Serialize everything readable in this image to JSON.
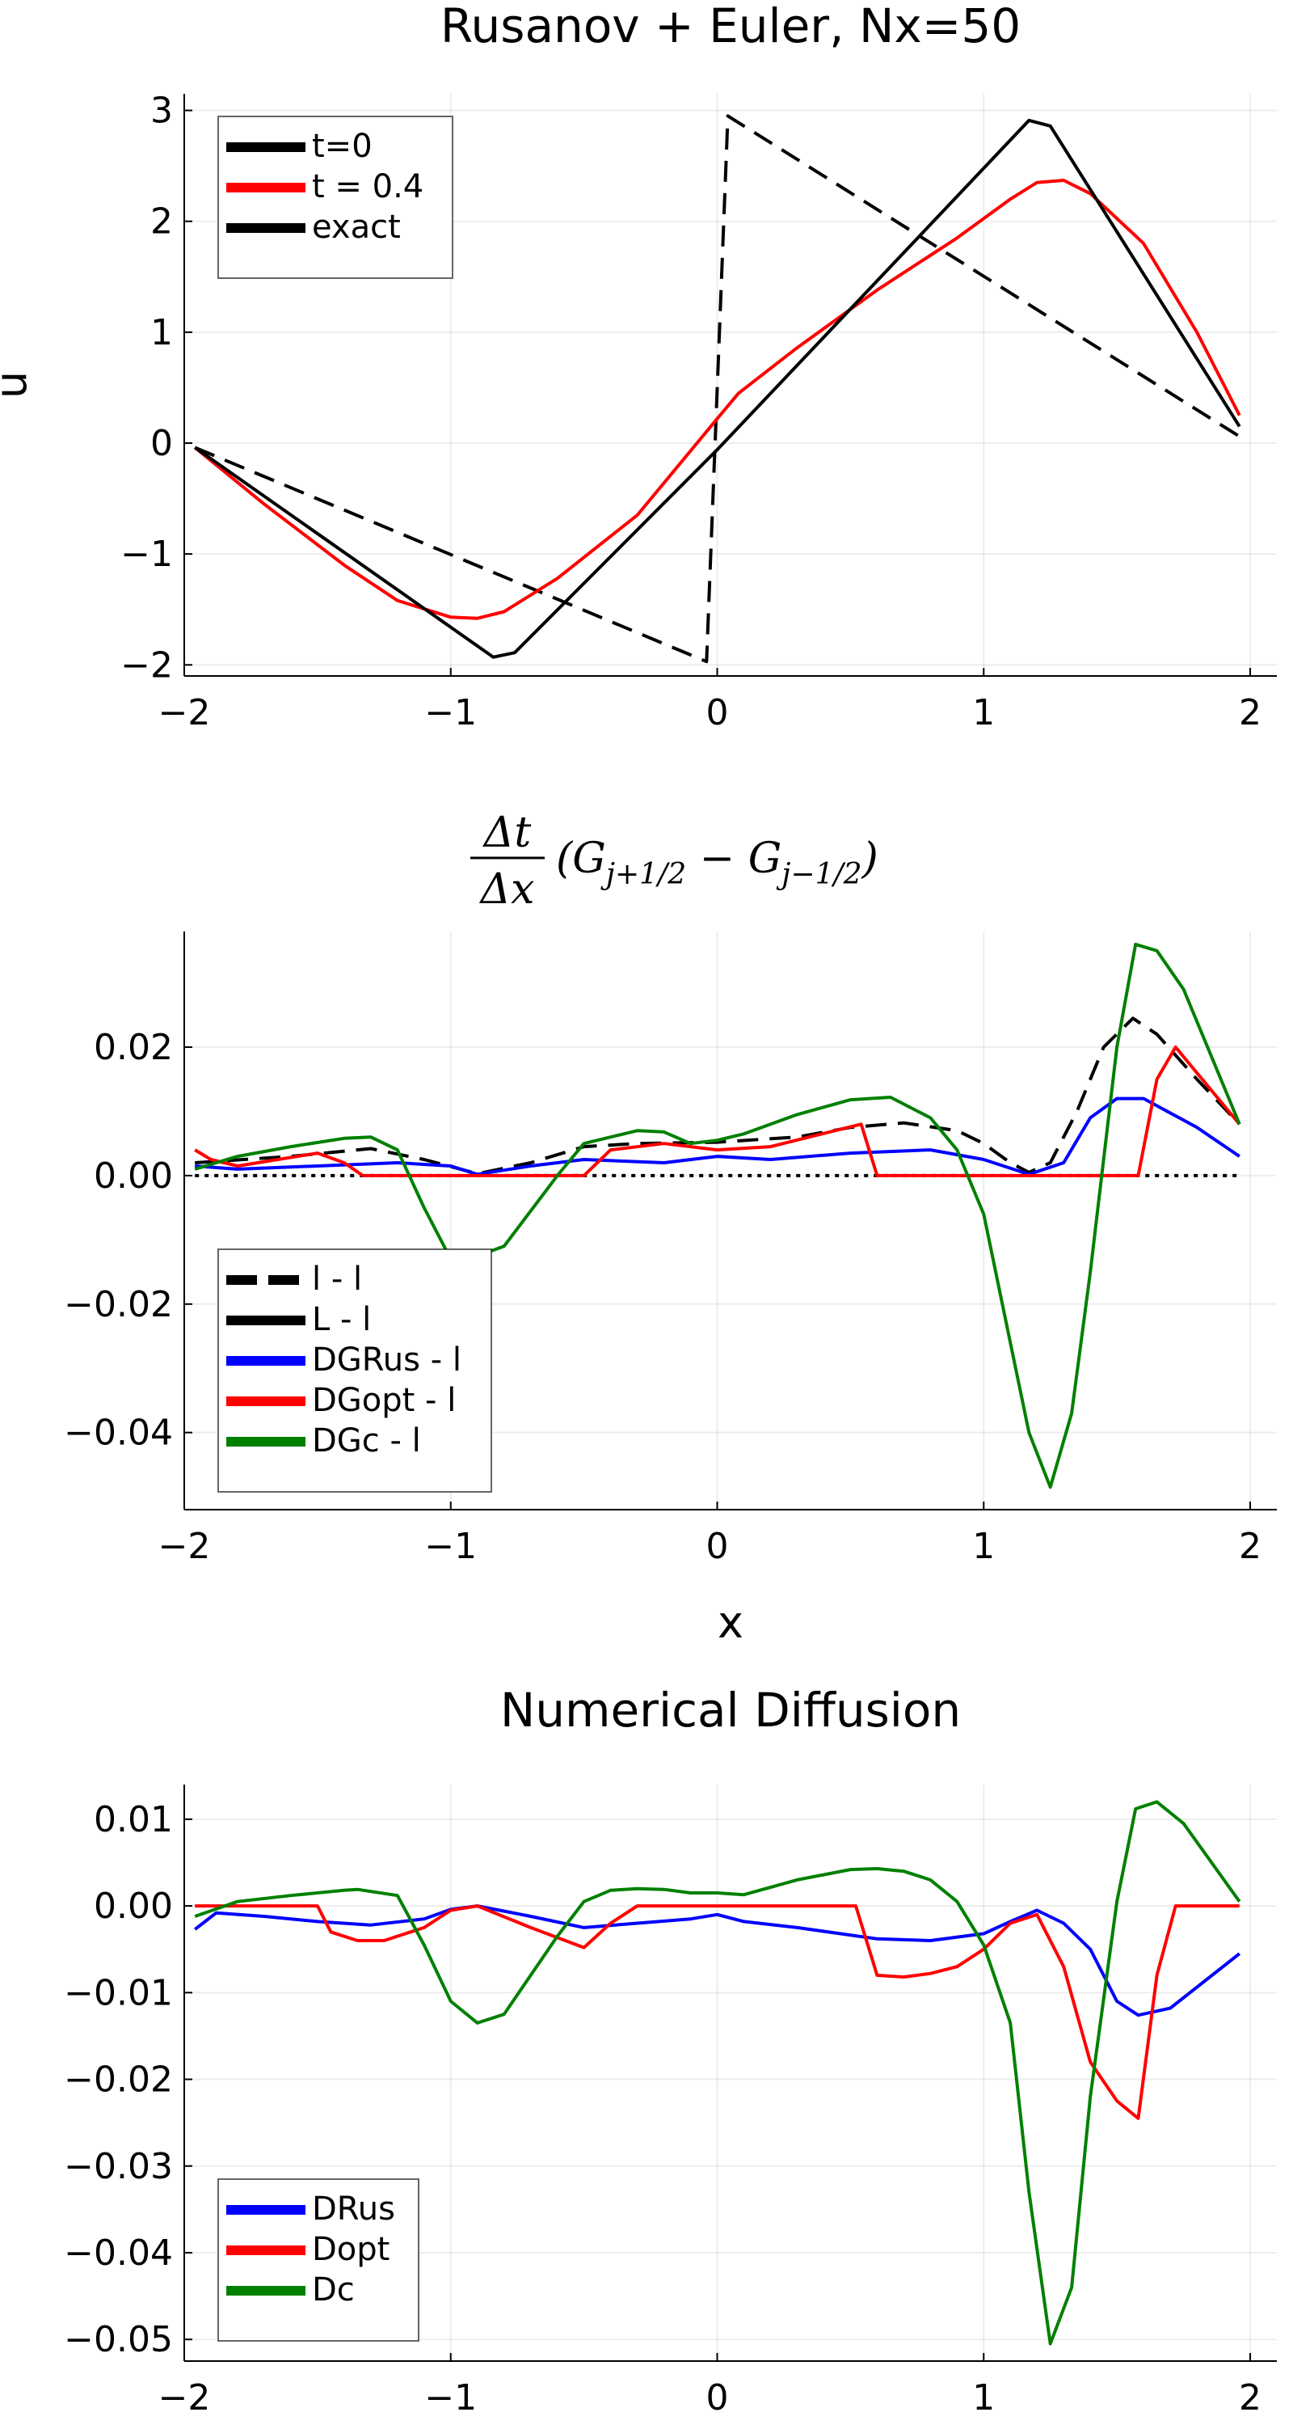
{
  "chart_data": [
    {
      "type": "line",
      "title": "Rusanov + Euler, Nx=50",
      "xlabel": "",
      "ylabel": "u",
      "xlim": [
        -2.0,
        2.1
      ],
      "ylim": [
        -2.1,
        3.15
      ],
      "xticks": [
        -2,
        -1,
        0,
        1,
        2
      ],
      "yticks": [
        -2,
        -1,
        0,
        1,
        2,
        3
      ],
      "xtick_labels": [
        "−2",
        "−1",
        "0",
        "1",
        "2"
      ],
      "ytick_labels": [
        "−2",
        "−1",
        "0",
        "1",
        "2",
        "3"
      ],
      "grid": true,
      "legend_position": "top-left",
      "series": [
        {
          "name": "t=0",
          "color": "#000000",
          "style": "dashed",
          "x": [
            -1.96,
            -0.04,
            0.04,
            1.96
          ],
          "y": [
            -0.04,
            -1.97,
            2.95,
            0.06
          ]
        },
        {
          "name": "t = 0.4",
          "color": "#ff0000",
          "style": "solid",
          "x": [
            -1.96,
            -1.7,
            -1.4,
            -1.2,
            -1.0,
            -0.9,
            -0.8,
            -0.6,
            -0.3,
            0.0,
            0.08,
            0.3,
            0.6,
            0.9,
            1.1,
            1.2,
            1.3,
            1.4,
            1.6,
            1.8,
            1.96
          ],
          "y": [
            -0.04,
            -0.55,
            -1.1,
            -1.42,
            -1.57,
            -1.58,
            -1.52,
            -1.22,
            -0.65,
            0.22,
            0.45,
            0.86,
            1.38,
            1.85,
            2.2,
            2.35,
            2.37,
            2.25,
            1.8,
            1.0,
            0.25
          ]
        },
        {
          "name": "exact",
          "color": "#000000",
          "style": "solid",
          "x": [
            -1.96,
            -0.84,
            -0.76,
            0.0,
            1.17,
            1.25,
            1.96
          ],
          "y": [
            -0.04,
            -1.93,
            -1.89,
            -0.06,
            2.91,
            2.86,
            0.15
          ]
        }
      ]
    },
    {
      "type": "line",
      "title": "",
      "title_math": {
        "num": "Δt",
        "den": "Δx",
        "rest_open": "(G",
        "sub1": "j+1/2",
        "minus": " − G",
        "sub2": "j−1/2",
        "rest_close": ")"
      },
      "xlabel": "x",
      "ylabel": "",
      "xlim": [
        -2.0,
        2.1
      ],
      "ylim": [
        -0.052,
        0.038
      ],
      "xticks": [
        -2,
        -1,
        0,
        1,
        2
      ],
      "yticks": [
        -0.04,
        -0.02,
        0.0,
        0.02
      ],
      "xtick_labels": [
        "−2",
        "−1",
        "0",
        "1",
        "2"
      ],
      "ytick_labels": [
        "−0.04",
        "−0.02",
        "0.00",
        "0.02"
      ],
      "grid": true,
      "legend_position": "bottom-left",
      "series": [
        {
          "name": "l - l",
          "color": "#000000",
          "style": "dotted",
          "x": [
            -1.96,
            1.96
          ],
          "y": [
            0.0,
            0.0
          ]
        },
        {
          "name": "L - l",
          "color": "#000000",
          "style": "dashed",
          "x": [
            -1.96,
            -1.6,
            -1.3,
            -1.1,
            -0.9,
            -0.7,
            -0.5,
            -0.3,
            0.0,
            0.3,
            0.5,
            0.7,
            0.9,
            1.0,
            1.1,
            1.17,
            1.25,
            1.35,
            1.45,
            1.56,
            1.65,
            1.8,
            1.96
          ],
          "y": [
            0.002,
            0.003,
            0.0042,
            0.0025,
            0.0003,
            0.002,
            0.0045,
            0.005,
            0.0052,
            0.006,
            0.0075,
            0.0082,
            0.007,
            0.005,
            0.002,
            0.0005,
            0.002,
            0.01,
            0.02,
            0.0245,
            0.022,
            0.015,
            0.008
          ]
        },
        {
          "name": "DGRus - l",
          "color": "#0000ff",
          "style": "solid",
          "x": [
            -1.96,
            -1.8,
            -1.5,
            -1.2,
            -1.0,
            -0.9,
            -0.7,
            -0.5,
            -0.2,
            0.0,
            0.2,
            0.5,
            0.8,
            1.0,
            1.17,
            1.3,
            1.4,
            1.5,
            1.6,
            1.8,
            1.96
          ],
          "y": [
            0.0015,
            0.001,
            0.0015,
            0.002,
            0.0015,
            0.0002,
            0.0015,
            0.0025,
            0.002,
            0.003,
            0.0025,
            0.0035,
            0.004,
            0.0025,
            0.0002,
            0.002,
            0.009,
            0.012,
            0.012,
            0.0075,
            0.003
          ]
        },
        {
          "name": "DGopt - l",
          "color": "#ff0000",
          "style": "solid",
          "x": [
            -1.96,
            -1.9,
            -1.8,
            -1.5,
            -1.4,
            -1.33,
            -0.9,
            -0.5,
            -0.4,
            -0.2,
            0.0,
            0.2,
            0.54,
            0.6,
            1.2,
            1.56,
            1.58,
            1.65,
            1.72,
            1.96
          ],
          "y": [
            0.004,
            0.0025,
            0.0015,
            0.0035,
            0.002,
            0.0,
            0.0,
            0.0,
            0.004,
            0.005,
            0.004,
            0.0045,
            0.008,
            0.0,
            0.0,
            0.0,
            0.0,
            0.015,
            0.02,
            0.008
          ]
        },
        {
          "name": "DGc - l",
          "color": "#008000",
          "style": "solid",
          "x": [
            -1.96,
            -1.8,
            -1.6,
            -1.4,
            -1.3,
            -1.2,
            -1.1,
            -1.0,
            -0.9,
            -0.8,
            -0.6,
            -0.5,
            -0.3,
            -0.2,
            -0.1,
            0.0,
            0.1,
            0.3,
            0.5,
            0.65,
            0.8,
            0.9,
            1.0,
            1.1,
            1.17,
            1.25,
            1.33,
            1.4,
            1.5,
            1.57,
            1.65,
            1.75,
            1.96
          ],
          "y": [
            0.001,
            0.003,
            0.0045,
            0.0058,
            0.006,
            0.004,
            -0.005,
            -0.013,
            -0.0125,
            -0.011,
            0.0,
            0.005,
            0.007,
            0.0068,
            0.005,
            0.0055,
            0.0065,
            0.0095,
            0.0118,
            0.0122,
            0.009,
            0.004,
            -0.006,
            -0.026,
            -0.04,
            -0.0485,
            -0.037,
            -0.015,
            0.02,
            0.036,
            0.035,
            0.029,
            0.008
          ]
        }
      ]
    },
    {
      "type": "line",
      "title": "Numerical Diffusion",
      "xlabel": "",
      "ylabel": "",
      "xlim": [
        -2.0,
        2.1
      ],
      "ylim": [
        -0.0525,
        0.014
      ],
      "xticks": [
        -2,
        -1,
        0,
        1,
        2
      ],
      "yticks": [
        -0.05,
        -0.04,
        -0.03,
        -0.02,
        -0.01,
        0.0,
        0.01
      ],
      "xtick_labels": [
        "−2",
        "−1",
        "0",
        "1",
        "2"
      ],
      "ytick_labels": [
        "−0.05",
        "−0.04",
        "−0.03",
        "−0.02",
        "−0.01",
        "0.00",
        "0.01"
      ],
      "grid": true,
      "legend_position": "bottom-left",
      "series": [
        {
          "name": "DRus",
          "color": "#0000ff",
          "style": "solid",
          "x": [
            -1.96,
            -1.88,
            -1.7,
            -1.5,
            -1.3,
            -1.1,
            -1.0,
            -0.9,
            -0.7,
            -0.5,
            -0.3,
            -0.1,
            0.0,
            0.1,
            0.3,
            0.6,
            0.8,
            1.0,
            1.1,
            1.2,
            1.3,
            1.4,
            1.5,
            1.58,
            1.7,
            1.96
          ],
          "y": [
            -0.0027,
            -0.0008,
            -0.0012,
            -0.0018,
            -0.0022,
            -0.0015,
            -0.0004,
            0.0,
            -0.0012,
            -0.0025,
            -0.002,
            -0.0015,
            -0.001,
            -0.0018,
            -0.0025,
            -0.0038,
            -0.004,
            -0.0032,
            -0.0018,
            -0.0005,
            -0.002,
            -0.005,
            -0.011,
            -0.0126,
            -0.0118,
            -0.0055
          ]
        },
        {
          "name": "Dopt",
          "color": "#ff0000",
          "style": "solid",
          "x": [
            -1.96,
            -1.9,
            -1.5,
            -1.45,
            -1.35,
            -1.25,
            -1.1,
            -1.0,
            -0.9,
            -0.7,
            -0.5,
            -0.4,
            -0.3,
            -0.2,
            0.0,
            0.2,
            0.52,
            0.6,
            0.7,
            0.8,
            0.9,
            1.0,
            1.1,
            1.2,
            1.3,
            1.4,
            1.5,
            1.58,
            1.65,
            1.72,
            1.96
          ],
          "y": [
            0.0,
            0.0,
            0.0,
            -0.003,
            -0.004,
            -0.004,
            -0.0025,
            -0.0005,
            0.0,
            -0.0025,
            -0.0048,
            -0.002,
            0.0,
            0.0,
            0.0,
            0.0,
            0.0,
            -0.008,
            -0.0082,
            -0.0078,
            -0.007,
            -0.005,
            -0.002,
            -0.001,
            -0.007,
            -0.018,
            -0.0225,
            -0.0245,
            -0.008,
            0.0,
            0.0
          ]
        },
        {
          "name": "Dc",
          "color": "#008000",
          "style": "solid",
          "x": [
            -1.96,
            -1.8,
            -1.6,
            -1.4,
            -1.35,
            -1.2,
            -1.1,
            -1.0,
            -0.9,
            -0.8,
            -0.6,
            -0.5,
            -0.4,
            -0.3,
            -0.2,
            -0.1,
            0.0,
            0.1,
            0.3,
            0.5,
            0.6,
            0.7,
            0.8,
            0.9,
            1.0,
            1.1,
            1.17,
            1.25,
            1.33,
            1.4,
            1.5,
            1.57,
            1.65,
            1.75,
            1.96
          ],
          "y": [
            -0.0012,
            0.0005,
            0.0012,
            0.0018,
            0.0019,
            0.0012,
            -0.0045,
            -0.011,
            -0.0135,
            -0.0125,
            -0.0035,
            0.0005,
            0.0018,
            0.002,
            0.0019,
            0.0015,
            0.0015,
            0.0013,
            0.003,
            0.0042,
            0.0043,
            0.004,
            0.003,
            0.0005,
            -0.0045,
            -0.0135,
            -0.033,
            -0.0505,
            -0.044,
            -0.022,
            0.0005,
            0.0112,
            0.012,
            0.0095,
            0.0005
          ]
        }
      ]
    }
  ]
}
